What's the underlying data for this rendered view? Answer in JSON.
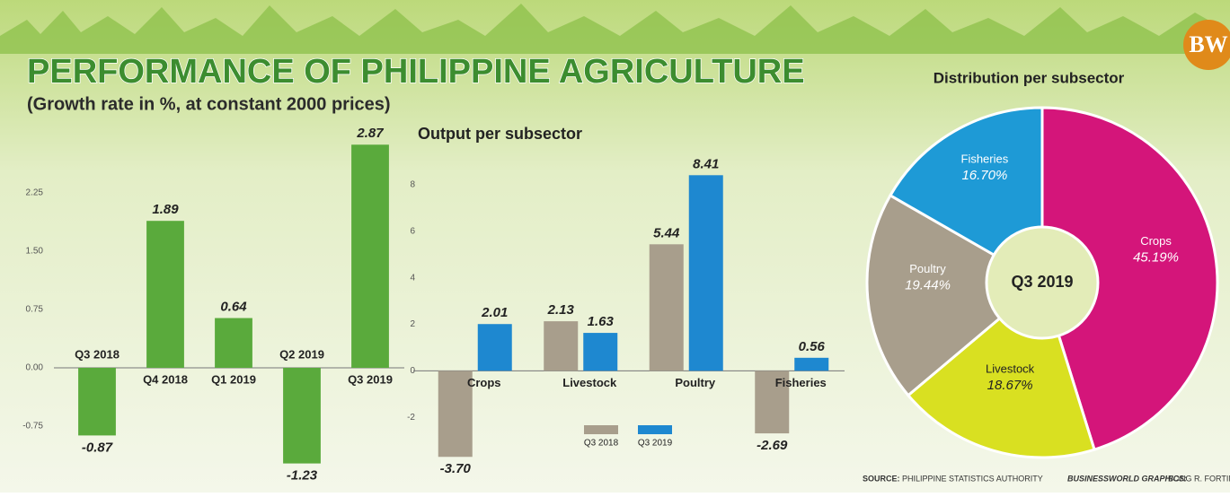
{
  "header": {
    "title": "PERFORMANCE OF PHILIPPINE AGRICULTURE",
    "subtitle": "(Growth rate in %, at constant 2000 prices)",
    "logo": "BW"
  },
  "chart_data": [
    {
      "type": "bar",
      "categories": [
        "Q3 2018",
        "Q4 2018",
        "Q1 2019",
        "Q2 2019",
        "Q3 2019"
      ],
      "values": [
        -0.87,
        1.89,
        0.64,
        -1.23,
        2.87
      ],
      "color": "#5aaa3c",
      "ylim": [
        -1.5,
        3.0
      ],
      "yticks": [
        -0.75,
        {
          "value": 0,
          "label": "0.00"
        },
        0.75,
        {
          "value": 1.5,
          "label": "1.50"
        },
        2.25
      ],
      "grid": false
    },
    {
      "type": "bar",
      "title": "Output per subsector",
      "categories": [
        "Crops",
        "Livestock",
        "Poultry",
        "Fisheries"
      ],
      "series": [
        {
          "name": "Q3 2018",
          "color": "#a89e8c",
          "values": [
            -3.7,
            2.13,
            5.44,
            -2.69
          ],
          "value_labels": [
            "-3.70",
            "2.13",
            "5.44",
            "-2.69"
          ]
        },
        {
          "name": "Q3 2019",
          "color": "#1e88d0",
          "values": [
            2.01,
            1.63,
            8.41,
            0.56
          ]
        }
      ],
      "ylim": [
        -4.5,
        9
      ],
      "yticks": [
        -2,
        0,
        2,
        4,
        6,
        8
      ],
      "grid": false,
      "legend": "bottom"
    },
    {
      "type": "pie",
      "title": "Distribution per subsector",
      "center_label": "Q3 2019",
      "categories": [
        "Crops",
        "Livestock",
        "Poultry",
        "Fisheries"
      ],
      "values": [
        45.19,
        18.67,
        19.44,
        16.7
      ],
      "value_labels": [
        "45.19%",
        "18.67%",
        "19.44%",
        "16.70%"
      ],
      "colors": [
        "#d4157a",
        "#d9e021",
        "#a89e8c",
        "#1e9ad6"
      ]
    }
  ],
  "footer": {
    "source_label": "SOURCE:",
    "source": "PHILIPPINE STATISTICS AUTHORITY",
    "credit_label": "BUSINESSWORLD GRAPHICS:",
    "credit": "BONG R. FORTIN"
  }
}
